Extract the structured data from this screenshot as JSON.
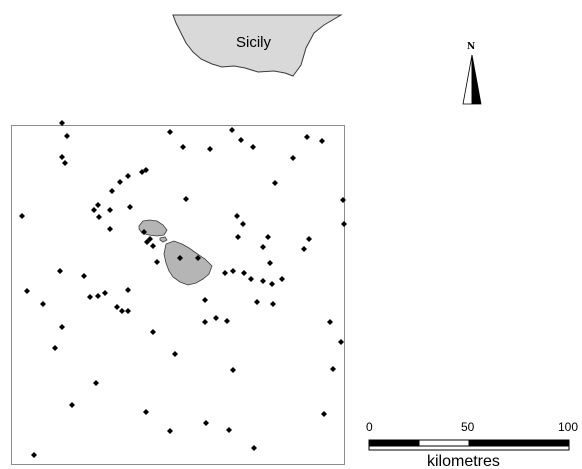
{
  "map": {
    "sicily_label": "Sicily",
    "north_label": "N",
    "scale": {
      "ticks": [
        "0",
        "50",
        "100"
      ],
      "unit": "kilometres"
    },
    "colors": {
      "land": "#d9d9d9",
      "islands": "#b5b5b5",
      "frame": "#8c8c8c",
      "points": "#000000"
    },
    "symbols": {
      "sample_point": "diamond-marker",
      "north_arrow": "triangle-arrow"
    },
    "sample_point_count": 85
  }
}
